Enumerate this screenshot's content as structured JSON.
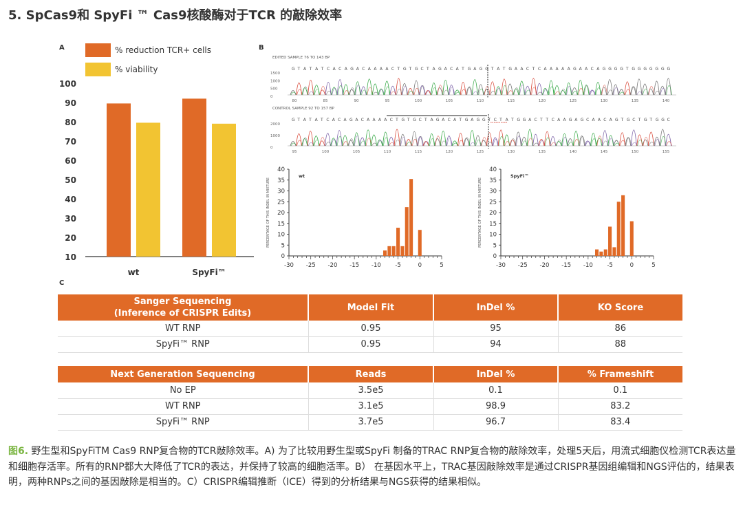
{
  "heading": "5. SpCas9和 SpyFi ™ Cas9核酸酶对于TCR 的敲除效率",
  "panel_labels": {
    "a": "A",
    "b": "B",
    "c": "C"
  },
  "chart_data": [
    {
      "type": "bar",
      "panel": "A",
      "categories": [
        "wt",
        "SpyFi™"
      ],
      "series": [
        {
          "name": "% reduction TCR+ cells",
          "color": "#e06a27",
          "values": [
            89.5,
            92
          ]
        },
        {
          "name": "% viability",
          "color": "#f2c432",
          "values": [
            79.5,
            79
          ]
        }
      ],
      "ylim": [
        10,
        100
      ],
      "yticks": [
        10,
        20,
        30,
        40,
        50,
        60,
        70,
        80,
        90,
        100
      ],
      "legend": "top-left",
      "grid": false
    },
    {
      "type": "bar",
      "panel": "B-left",
      "title": "wt",
      "ylabel": "PERCENTAGE OF THIS INDEL IN MIXTURE",
      "x": [
        -9,
        -8,
        -7,
        -6,
        -5,
        -4,
        -3,
        -2,
        -1,
        0,
        1
      ],
      "values": [
        0,
        2.5,
        4.5,
        4.5,
        13,
        4.5,
        22.5,
        35.5,
        0,
        12,
        0
      ],
      "xlim": [
        -30,
        5
      ],
      "xticks": [
        -30,
        -25,
        -20,
        -15,
        -10,
        -5,
        0,
        5
      ],
      "ylim": [
        0,
        40
      ],
      "yticks": [
        0,
        5,
        10,
        15,
        20,
        25,
        30,
        35,
        40
      ],
      "color": "#e06a27",
      "grid": false
    },
    {
      "type": "bar",
      "panel": "B-right",
      "title": "SpyFi™",
      "ylabel": "PERCENTAGE OF THIS INDEL IN MIXTURE",
      "x": [
        -8,
        -7,
        -6,
        -5,
        -4,
        -3,
        -2,
        -1,
        0,
        1
      ],
      "values": [
        3,
        2,
        3,
        13.5,
        4,
        25,
        28,
        0,
        16,
        0
      ],
      "xlim": [
        -30,
        5
      ],
      "xticks": [
        -30,
        -25,
        -20,
        -15,
        -10,
        -5,
        0,
        5
      ],
      "ylim": [
        0,
        40
      ],
      "yticks": [
        0,
        5,
        10,
        15,
        20,
        25,
        30,
        35,
        40
      ],
      "color": "#e06a27",
      "grid": false
    }
  ],
  "sanger": {
    "top_label": "EDITED SAMPLE 76 TO 143 BP",
    "top_seq": "GTATATCACAGACAAAACTGTGCTAGACATGAGGTATGAACTCAAAAAGAACAGGGGTGGGGGGG",
    "top_yticks": [
      "1500",
      "1000",
      "500",
      "0"
    ],
    "top_xticks": [
      "80",
      "85",
      "90",
      "95",
      "100",
      "105",
      "110",
      "115",
      "120",
      "125",
      "130",
      "135",
      "140"
    ],
    "bottom_label": "CONTROL SAMPLE 92 TO 157 BP",
    "bottom_seq": "GTATATCACAGACAAAACTGTGCTAGACATGAGGTCTATGGACTTCAAGAGCAACAGTGCTGTGGC",
    "bottom_yticks": [
      "2000",
      "1000",
      "0"
    ],
    "bottom_xticks": [
      "95",
      "100",
      "105",
      "110",
      "115",
      "120",
      "125",
      "130",
      "135",
      "140",
      "145",
      "150",
      "155"
    ]
  },
  "table1": {
    "headers": [
      "Sanger Sequencing\n(Inference of CRISPR Edits)",
      "Model Fit",
      "InDel %",
      "KO Score"
    ],
    "rows": [
      [
        "WT RNP",
        "0.95",
        "95",
        "86"
      ],
      [
        "SpyFi™ RNP",
        "0.95",
        "94",
        "88"
      ]
    ]
  },
  "table2": {
    "headers": [
      "Next Generation Sequencing",
      "Reads",
      "InDel %",
      "% Frameshift"
    ],
    "rows": [
      [
        "No EP",
        "3.5e5",
        "0.1",
        "0.1"
      ],
      [
        "WT RNP",
        "3.1e5",
        "98.9",
        "83.2"
      ],
      [
        "SpyFi™ RNP",
        "3.7e5",
        "96.7",
        "83.4"
      ]
    ]
  },
  "caption": {
    "label": "图6.",
    "text": " 野生型和SpyFiTM Cas9 RNP复合物的TCR敲除效率。A) 为了比较用野生型或SpyFi 制备的TRAC RNP复合物的敲除效率，处理5天后，用流式细胞仪检测TCR表达量和细胞存活率。所有的RNP都大大降低了TCR的表达，并保持了较高的细胞活率。B） 在基因水平上，TRAC基因敲除效率是通过CRISPR基因组编辑和NGS评估的，结果表明，两种RNPs之间的基因敲除是相当的。C）CRISPR编辑推断（ICE）得到的分析结果与NGS获得的结果相似。"
  },
  "colors": {
    "accent": "#e06a27",
    "secondary": "#f2c432",
    "figure_label": "#7ab541",
    "trace_green": "#3aaa49",
    "trace_purple": "#7d63a8",
    "trace_red": "#d94c3d",
    "trace_gray": "#777777"
  }
}
